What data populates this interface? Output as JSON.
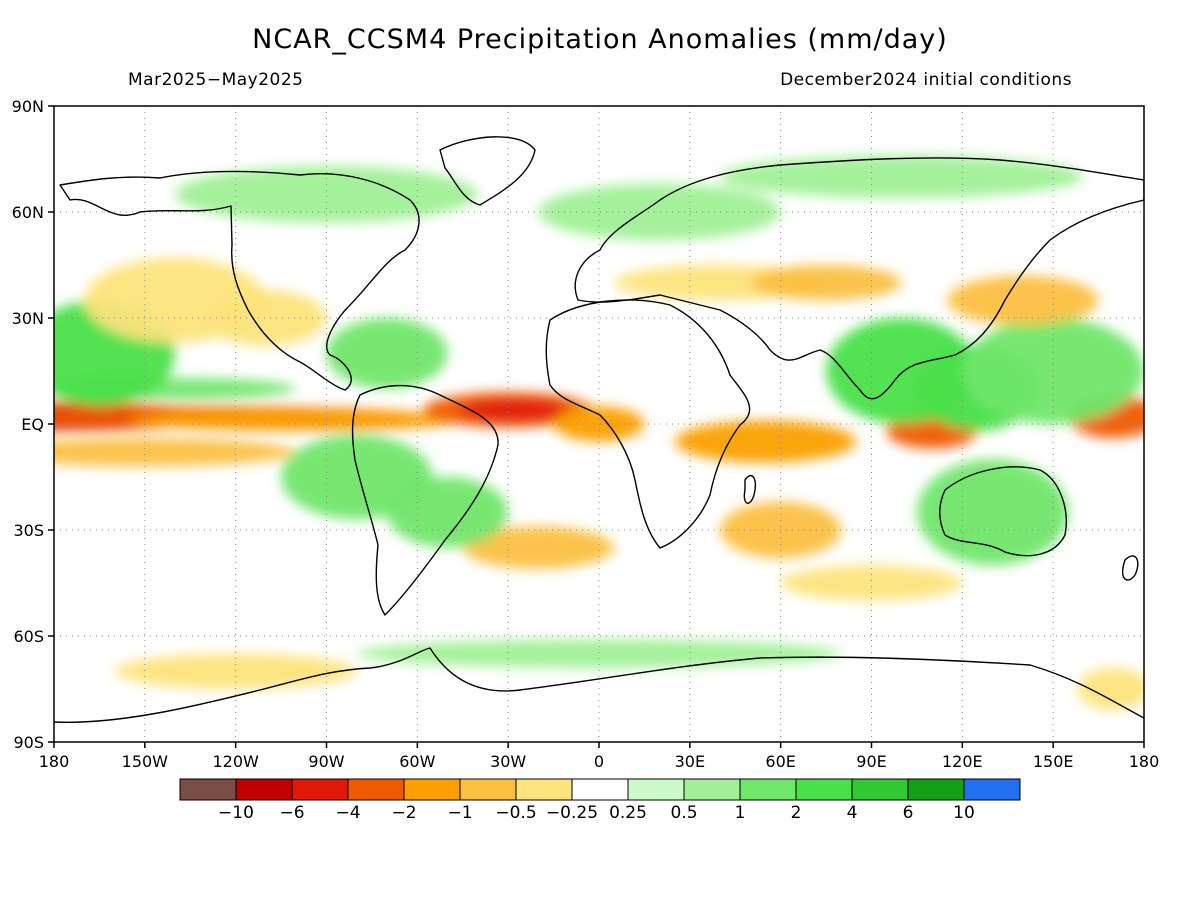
{
  "title": "NCAR_CCSM4 Precipitation Anomalies (mm/day)",
  "subtitle_left": "Mar2025−May2025",
  "subtitle_right": "December2024 initial conditions",
  "map": {
    "projection": "equirectangular",
    "lon_range": [
      -180,
      180
    ],
    "lat_range": [
      -90,
      90
    ],
    "grid": "dotted",
    "lat_ticks": [
      {
        "lat": 90,
        "label": "90N"
      },
      {
        "lat": 60,
        "label": "60N"
      },
      {
        "lat": 30,
        "label": "30N"
      },
      {
        "lat": 0,
        "label": "EQ"
      },
      {
        "lat": -30,
        "label": "30S"
      },
      {
        "lat": -60,
        "label": "60S"
      },
      {
        "lat": -90,
        "label": "90S"
      }
    ],
    "lon_ticks": [
      {
        "lon": -180,
        "label": "180"
      },
      {
        "lon": -150,
        "label": "150W"
      },
      {
        "lon": -120,
        "label": "120W"
      },
      {
        "lon": -90,
        "label": "90W"
      },
      {
        "lon": -60,
        "label": "60W"
      },
      {
        "lon": -30,
        "label": "30W"
      },
      {
        "lon": 0,
        "label": "0"
      },
      {
        "lon": 30,
        "label": "30E"
      },
      {
        "lon": 60,
        "label": "60E"
      },
      {
        "lon": 90,
        "label": "90E"
      },
      {
        "lon": 120,
        "label": "120E"
      },
      {
        "lon": 150,
        "label": "150E"
      },
      {
        "lon": 180,
        "label": "180"
      }
    ],
    "coastline_color": "#000000"
  },
  "colorbar": {
    "colors": [
      "#7a4e44",
      "#c00000",
      "#e01808",
      "#f05a00",
      "#fba000",
      "#fbc040",
      "#fde47c",
      "#ffffff",
      "#ccfacb",
      "#a0f096",
      "#70e66a",
      "#4ae04a",
      "#32c832",
      "#14a014",
      "#2070f0"
    ],
    "labels": [
      "−10",
      "−6",
      "−4",
      "−2",
      "−1",
      "−0.5",
      "−0.25",
      "0.25",
      "0.5",
      "1",
      "2",
      "4",
      "6",
      "10"
    ]
  },
  "anomalies": [
    {
      "lon": -180,
      "lat": 2,
      "rx": 60,
      "ry": 4,
      "level": -6
    },
    {
      "lon": -150,
      "lat": 3,
      "rx": 40,
      "ry": 2,
      "level": -10
    },
    {
      "lon": -125,
      "lat": 2,
      "rx": 70,
      "ry": 3,
      "level": -4
    },
    {
      "lon": -100,
      "lat": 1,
      "rx": 55,
      "ry": 3,
      "level": -2
    },
    {
      "lon": -150,
      "lat": -8,
      "rx": 50,
      "ry": 4,
      "level": -1
    },
    {
      "lon": -140,
      "lat": 10,
      "rx": 40,
      "ry": 3,
      "level": 1
    },
    {
      "lon": -165,
      "lat": 20,
      "rx": 25,
      "ry": 15,
      "level": 2
    },
    {
      "lon": -140,
      "lat": 35,
      "rx": 30,
      "ry": 12,
      "level": -0.5
    },
    {
      "lon": -30,
      "lat": 4,
      "rx": 28,
      "ry": 5,
      "level": -4
    },
    {
      "lon": -28,
      "lat": 4,
      "rx": 18,
      "ry": 3,
      "level": -6
    },
    {
      "lon": 0,
      "lat": 0,
      "rx": 15,
      "ry": 5,
      "level": -2
    },
    {
      "lon": 55,
      "lat": -5,
      "rx": 30,
      "ry": 6,
      "level": -2
    },
    {
      "lon": 110,
      "lat": -2,
      "rx": 15,
      "ry": 5,
      "level": -4
    },
    {
      "lon": 170,
      "lat": 2,
      "rx": 15,
      "ry": 6,
      "level": -4
    },
    {
      "lon": -20,
      "lat": -35,
      "rx": 25,
      "ry": 6,
      "level": -1
    },
    {
      "lon": -80,
      "lat": -15,
      "rx": 25,
      "ry": 12,
      "level": 1
    },
    {
      "lon": -50,
      "lat": -25,
      "rx": 20,
      "ry": 10,
      "level": 1
    },
    {
      "lon": 100,
      "lat": 15,
      "rx": 25,
      "ry": 15,
      "level": 2
    },
    {
      "lon": 125,
      "lat": 10,
      "rx": 20,
      "ry": 12,
      "level": 2
    },
    {
      "lon": 150,
      "lat": 15,
      "rx": 30,
      "ry": 15,
      "level": 1
    },
    {
      "lon": 130,
      "lat": -25,
      "rx": 25,
      "ry": 15,
      "level": 1
    },
    {
      "lon": 60,
      "lat": -30,
      "rx": 20,
      "ry": 8,
      "level": -1
    },
    {
      "lon": -70,
      "lat": 20,
      "rx": 20,
      "ry": 10,
      "level": 1
    },
    {
      "lon": -110,
      "lat": 30,
      "rx": 20,
      "ry": 8,
      "level": -0.5
    },
    {
      "lon": 40,
      "lat": 40,
      "rx": 35,
      "ry": 5,
      "level": -0.5
    },
    {
      "lon": 75,
      "lat": 40,
      "rx": 25,
      "ry": 5,
      "level": -1
    },
    {
      "lon": 140,
      "lat": 35,
      "rx": 25,
      "ry": 7,
      "level": -1
    },
    {
      "lon": 20,
      "lat": 60,
      "rx": 40,
      "ry": 8,
      "level": 0.5
    },
    {
      "lon": -90,
      "lat": 65,
      "rx": 50,
      "ry": 8,
      "level": 0.5
    },
    {
      "lon": 100,
      "lat": 70,
      "rx": 60,
      "ry": 6,
      "level": 0.5
    },
    {
      "lon": -120,
      "lat": -70,
      "rx": 40,
      "ry": 5,
      "level": -0.5
    },
    {
      "lon": 0,
      "lat": -65,
      "rx": 80,
      "ry": 4,
      "level": 0.5
    },
    {
      "lon": 170,
      "lat": -75,
      "rx": 12,
      "ry": 6,
      "level": -0.5
    },
    {
      "lon": 90,
      "lat": -45,
      "rx": 30,
      "ry": 5,
      "level": -0.5
    }
  ]
}
